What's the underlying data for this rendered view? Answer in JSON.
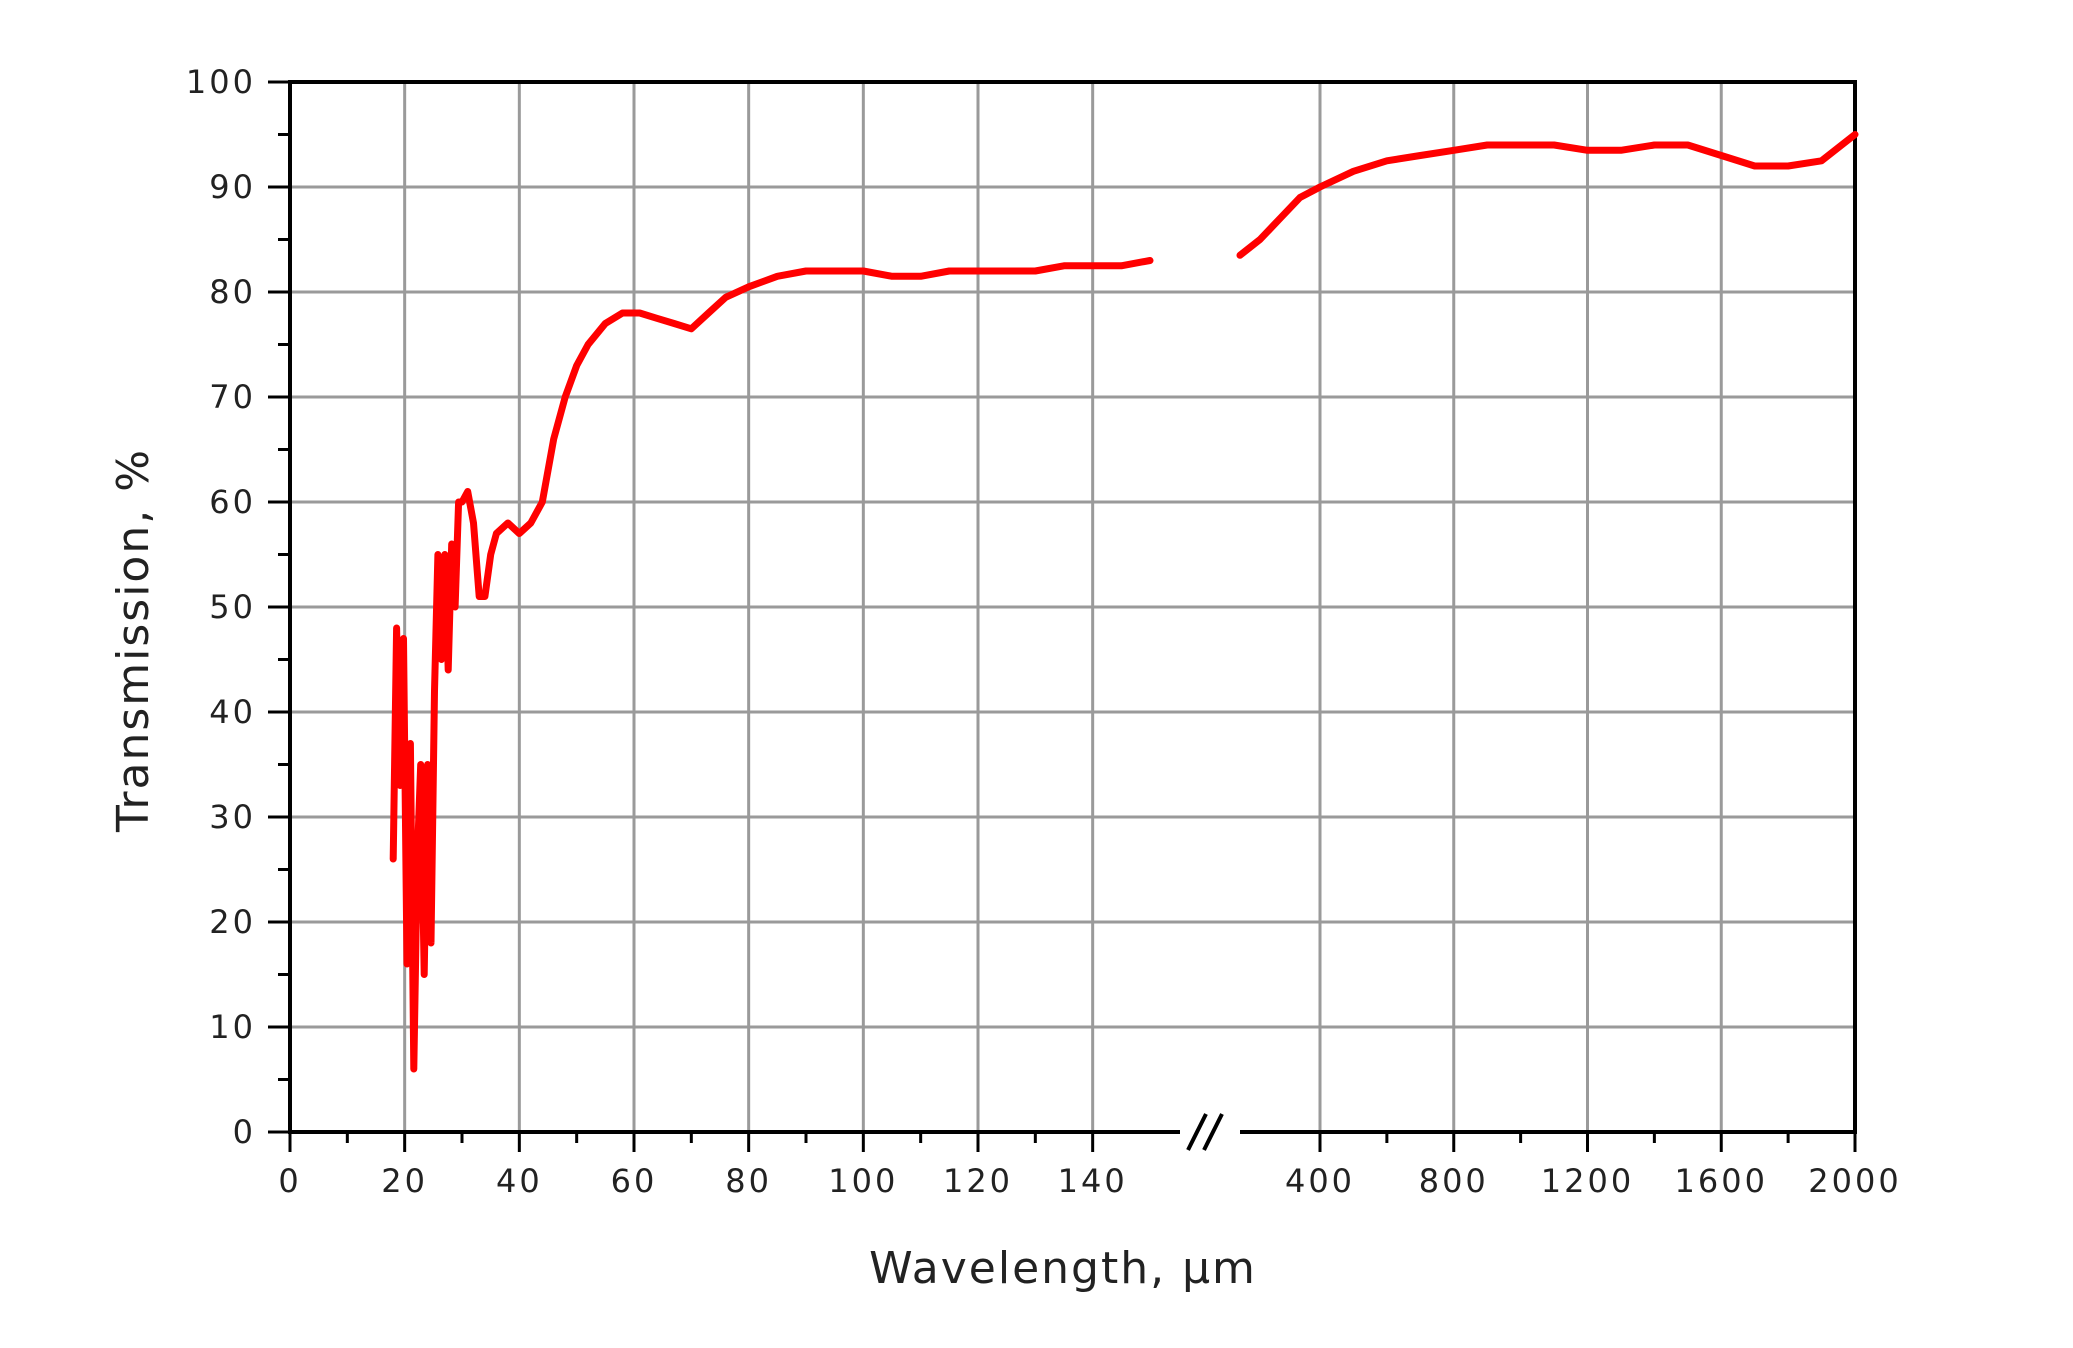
{
  "chart_data": {
    "type": "line",
    "xlabel": "Wavelength, µm",
    "ylabel": "Transmission, %",
    "ylim": [
      0,
      100
    ],
    "y_ticks": [
      "0",
      "10",
      "20",
      "30",
      "40",
      "50",
      "60",
      "70",
      "80",
      "90",
      "100"
    ],
    "x_axis_broken": true,
    "x_ticks_left": [
      "0",
      "20",
      "40",
      "60",
      "80",
      "100",
      "120",
      "140"
    ],
    "x_ticks_right": [
      "400",
      "800",
      "1200",
      "1600",
      "2000"
    ],
    "grid": true,
    "colors": {
      "series": "#ff0000",
      "grid": "#9a9a9a",
      "axis": "#000000"
    },
    "series": [
      {
        "segment": "left",
        "x": [
          18,
          18.6,
          19.2,
          19.8,
          20.4,
          21,
          21.6,
          22.2,
          22.8,
          23.4,
          24,
          24.6,
          25.2,
          25.8,
          26.4,
          27,
          27.6,
          28.2,
          28.8,
          29.4,
          30,
          31,
          32,
          33,
          34,
          35,
          36,
          38,
          40,
          42,
          44,
          46,
          48,
          50,
          52,
          55,
          58,
          61,
          64,
          67,
          70,
          73,
          76,
          80,
          85,
          90,
          95,
          100,
          105,
          110,
          115,
          120,
          125,
          130,
          135,
          140,
          145,
          150
        ],
        "y": [
          26,
          48,
          33,
          47,
          16,
          37,
          6,
          26,
          35,
          15,
          35,
          18,
          42,
          55,
          45,
          55,
          44,
          56,
          50,
          60,
          60,
          61,
          58,
          51,
          51,
          55,
          57,
          58,
          57,
          58,
          60,
          66,
          70,
          73,
          75,
          77,
          78,
          78,
          77.5,
          77,
          76.5,
          78,
          79.5,
          80.5,
          81.5,
          82,
          82,
          82,
          81.5,
          81.5,
          82,
          82,
          82,
          82,
          82.5,
          82.5,
          82.5,
          83
        ]
      },
      {
        "segment": "right",
        "x": [
          200,
          250,
          300,
          350,
          400,
          500,
          600,
          700,
          800,
          900,
          1000,
          1100,
          1200,
          1300,
          1400,
          1500,
          1600,
          1700,
          1800,
          1900,
          2000
        ],
        "y": [
          83.5,
          85,
          87,
          89,
          90,
          91.5,
          92.5,
          93,
          93.5,
          94,
          94,
          94,
          93.5,
          93.5,
          94,
          94,
          93,
          92,
          92,
          92.5,
          95
        ]
      }
    ]
  }
}
